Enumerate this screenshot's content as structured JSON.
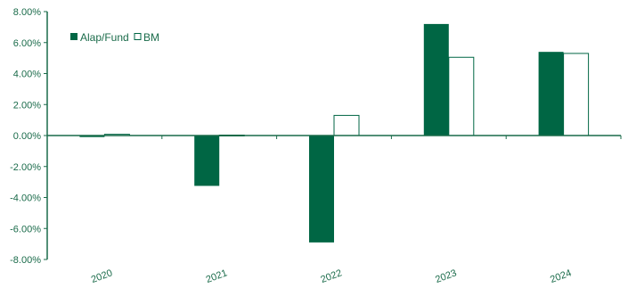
{
  "chart_data": {
    "type": "bar",
    "categories": [
      "2020",
      "2021",
      "2022",
      "2023",
      "2024"
    ],
    "series": [
      {
        "name": "Alap/Fund",
        "values": [
          -0.1,
          -3.25,
          -6.9,
          7.2,
          5.4
        ],
        "color": "#006644",
        "fill": "solid"
      },
      {
        "name": "BM",
        "values": [
          0.08,
          0.03,
          1.3,
          5.05,
          5.3
        ],
        "color": "#006644",
        "fill": "hollow"
      }
    ],
    "y_ticks": [
      "8.00%",
      "6.00%",
      "4.00%",
      "2.00%",
      "0.00%",
      "-2.00%",
      "-4.00%",
      "-6.00%",
      "-8.00%"
    ],
    "ylim": [
      -8,
      8
    ],
    "ylabel": "",
    "xlabel": "",
    "title": "",
    "grid": false,
    "legend_position": "top-left",
    "axis_color": "#1a6b4a"
  }
}
